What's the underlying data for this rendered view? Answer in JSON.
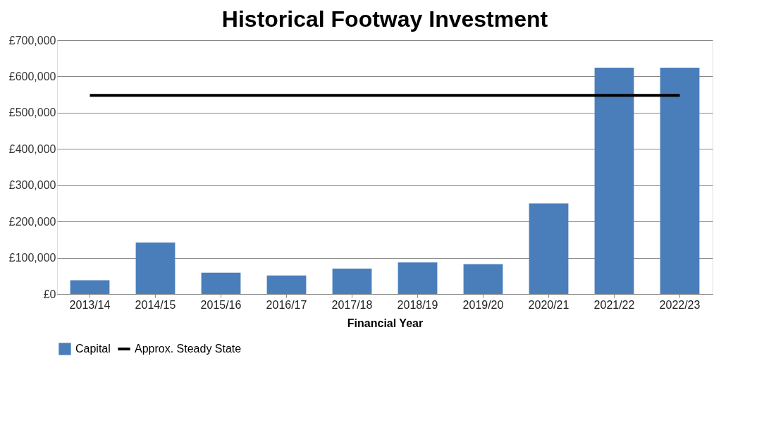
{
  "chart_data": {
    "type": "bar",
    "title": "Historical Footway Investment",
    "xlabel": "Financial Year",
    "categories": [
      "2013/14",
      "2014/15",
      "2015/16",
      "2016/17",
      "2017/18",
      "2018/19",
      "2019/20",
      "2020/21",
      "2021/22",
      "2022/23"
    ],
    "series": [
      {
        "name": "Capital",
        "color": "#4a7ebb",
        "values": [
          38000,
          142000,
          59000,
          51000,
          70000,
          87000,
          82000,
          250000,
          624000,
          624000
        ]
      },
      {
        "name": "Approx. Steady State",
        "type": "line",
        "color": "#000000",
        "values": [
          548000,
          548000,
          548000,
          548000,
          548000,
          548000,
          548000,
          548000,
          548000,
          548000
        ]
      }
    ],
    "ylim": [
      0,
      700000
    ],
    "yticks": [
      {
        "value": 0,
        "label": "£0"
      },
      {
        "value": 100000,
        "label": "£100,000"
      },
      {
        "value": 200000,
        "label": "£200,000"
      },
      {
        "value": 300000,
        "label": "£300,000"
      },
      {
        "value": 400000,
        "label": "£400,000"
      },
      {
        "value": 500000,
        "label": "£500,000"
      },
      {
        "value": 600000,
        "label": "£600,000"
      },
      {
        "value": 700000,
        "label": "£700,000"
      }
    ],
    "grid": "y",
    "legend": "bottom"
  }
}
